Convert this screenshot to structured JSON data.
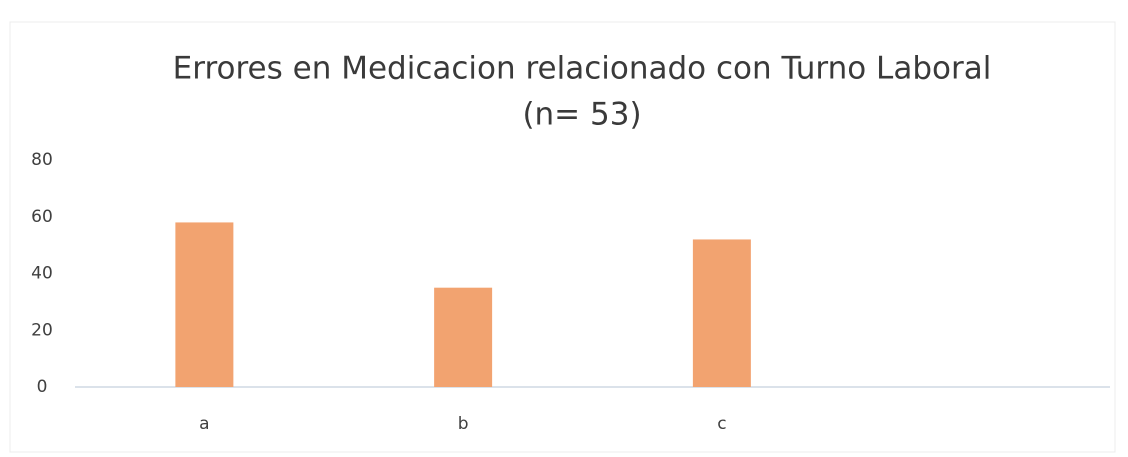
{
  "chart_data": {
    "type": "bar",
    "title": "Errores en Medicacion relacionado con Turno Laboral",
    "subtitle": "(n= 53)",
    "categories": [
      "a",
      "b",
      "c",
      null
    ],
    "values": [
      58,
      35,
      52,
      null
    ],
    "color": "#f2a370",
    "ylim": [
      0,
      80
    ],
    "yticks": [
      0,
      20,
      40,
      60,
      80
    ],
    "grid": false
  }
}
